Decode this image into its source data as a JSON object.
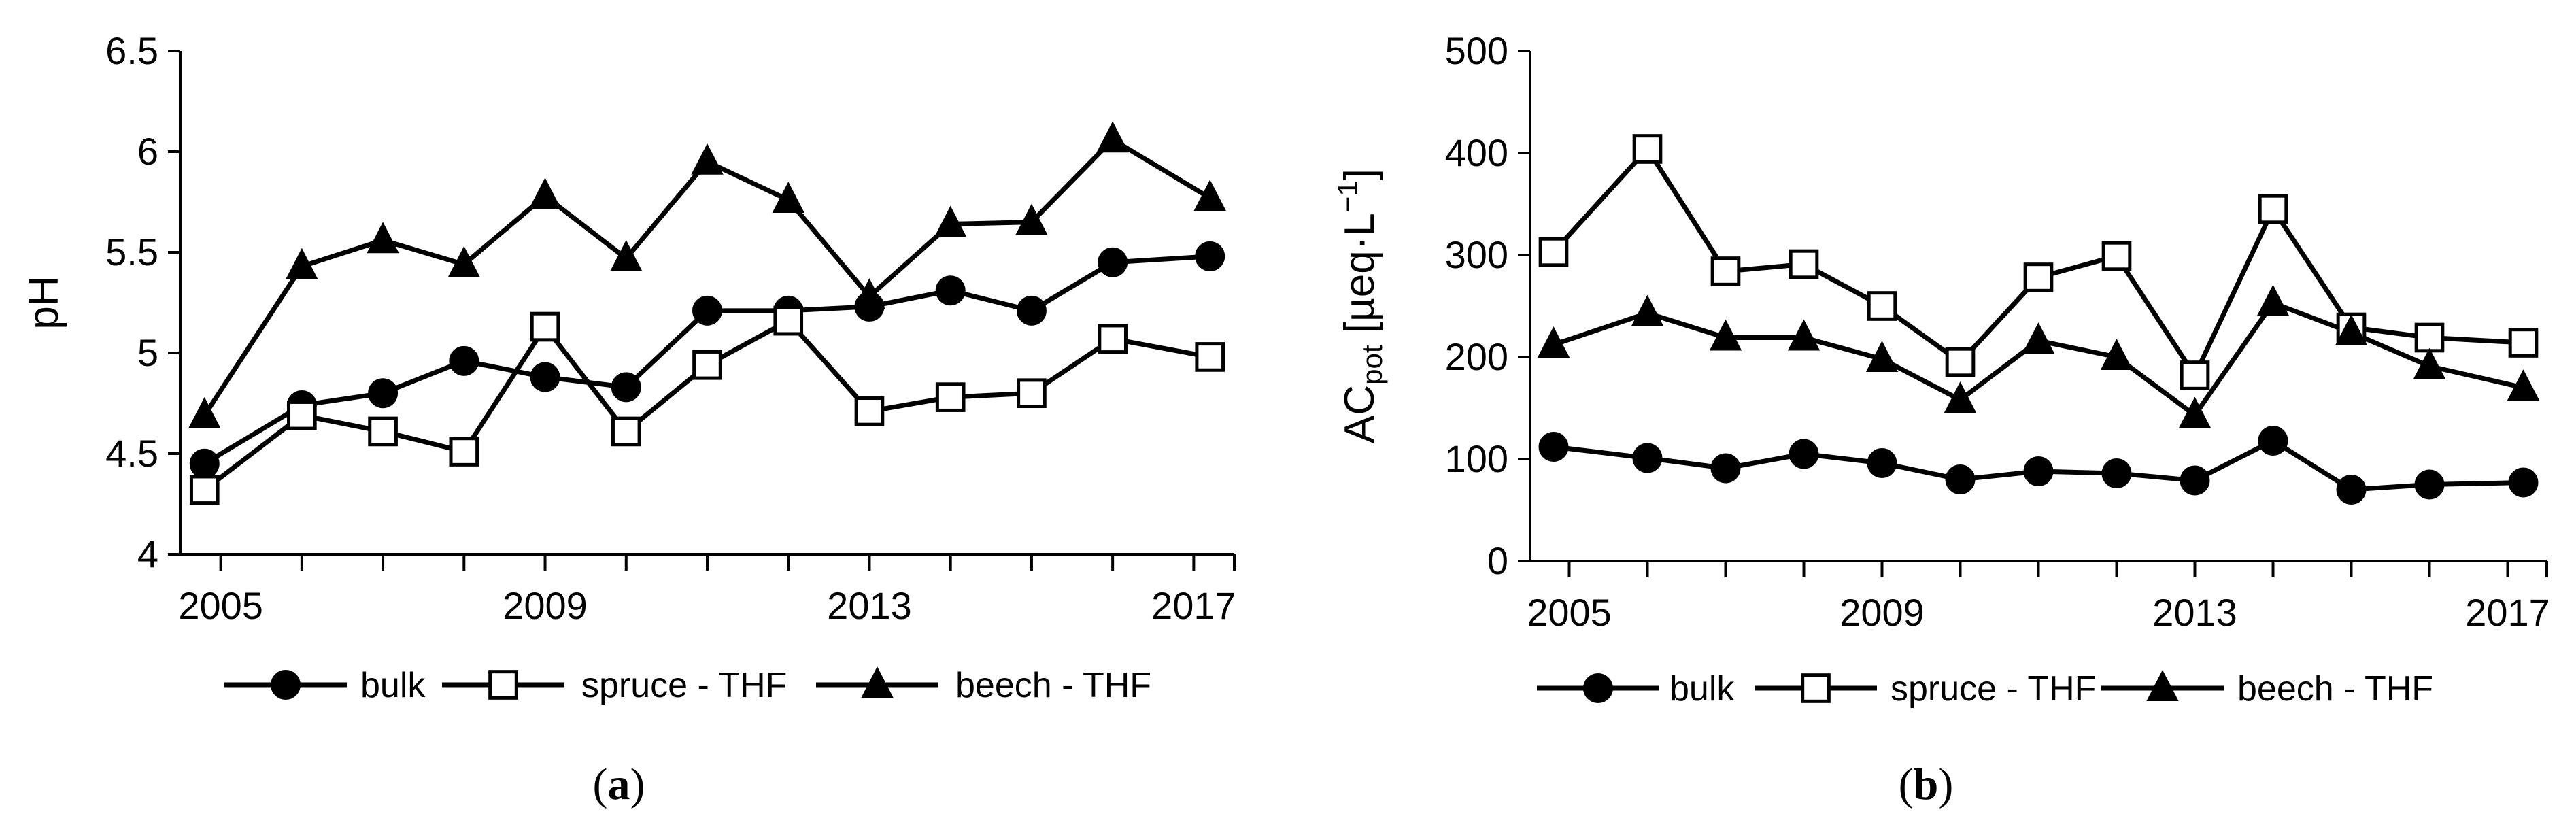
{
  "chart_data": [
    {
      "type": "line",
      "panel_label": "a",
      "xlabel": "",
      "ylabel": "pH",
      "ylim": [
        4,
        6.5
      ],
      "yticks": [
        "4",
        "4.5",
        "5",
        "5.5",
        "6",
        "6.5"
      ],
      "xlim": [
        2004.5,
        2017.5
      ],
      "xticks": [
        "2005",
        "2009",
        "2013",
        "2017"
      ],
      "series": [
        {
          "name": "bulk",
          "marker": "circle",
          "x": [
            2004.8,
            2006,
            2007,
            2008,
            2009,
            2010,
            2011,
            2012,
            2013,
            2014,
            2015,
            2016,
            2017.2
          ],
          "values": [
            4.45,
            4.74,
            4.8,
            4.96,
            4.88,
            4.83,
            5.21,
            5.21,
            5.23,
            5.31,
            5.21,
            5.45,
            5.48
          ]
        },
        {
          "name": "spruce - THF",
          "marker": "square",
          "x": [
            2004.8,
            2006,
            2007,
            2008,
            2009,
            2010,
            2011,
            2012,
            2013,
            2014,
            2015,
            2016,
            2017.2
          ],
          "values": [
            4.32,
            4.69,
            4.61,
            4.51,
            5.13,
            4.61,
            4.94,
            5.16,
            4.71,
            4.78,
            4.8,
            5.07,
            4.98
          ]
        },
        {
          "name": "beech - THF",
          "marker": "triangle",
          "x": [
            2004.8,
            2006,
            2007,
            2008,
            2009,
            2010,
            2011,
            2012,
            2013,
            2014,
            2015,
            2016,
            2017.2
          ],
          "values": [
            4.69,
            5.43,
            5.56,
            5.44,
            5.78,
            5.47,
            5.95,
            5.76,
            5.28,
            5.64,
            5.65,
            6.06,
            5.77
          ]
        }
      ]
    },
    {
      "type": "line",
      "panel_label": "b",
      "xlabel": "",
      "ylabel": "AC",
      "ylabel_sub": "pot",
      "ylabel_unit": "[µeq·L",
      "ylabel_sup": "−1",
      "ylabel_close": "]",
      "ylim": [
        0,
        500
      ],
      "yticks": [
        "0",
        "100",
        "200",
        "300",
        "400",
        "500"
      ],
      "xlim": [
        2004.5,
        2017.5
      ],
      "xticks": [
        "2005",
        "2009",
        "2013",
        "2017"
      ],
      "series": [
        {
          "name": "bulk",
          "marker": "circle",
          "x": [
            2004.8,
            2006,
            2007,
            2008,
            2009,
            2010,
            2011,
            2012,
            2013,
            2014,
            2015,
            2016,
            2017.2
          ],
          "values": [
            112,
            101,
            91,
            105,
            96,
            80,
            88,
            86,
            79,
            118,
            70,
            75,
            77
          ]
        },
        {
          "name": "spruce - THF",
          "marker": "square",
          "x": [
            2004.8,
            2006,
            2007,
            2008,
            2009,
            2010,
            2011,
            2012,
            2013,
            2014,
            2015,
            2016,
            2017.2
          ],
          "values": [
            303,
            404,
            284,
            291,
            250,
            195,
            278,
            299,
            182,
            345,
            229,
            219,
            214
          ]
        },
        {
          "name": "beech - THF",
          "marker": "triangle",
          "x": [
            2004.8,
            2006,
            2007,
            2008,
            2009,
            2010,
            2011,
            2012,
            2013,
            2014,
            2015,
            2016,
            2017.2
          ],
          "values": [
            212,
            243,
            219,
            219,
            198,
            158,
            216,
            200,
            143,
            253,
            224,
            191,
            170
          ]
        }
      ]
    }
  ],
  "captions": [
    "(a)",
    "(b)"
  ]
}
